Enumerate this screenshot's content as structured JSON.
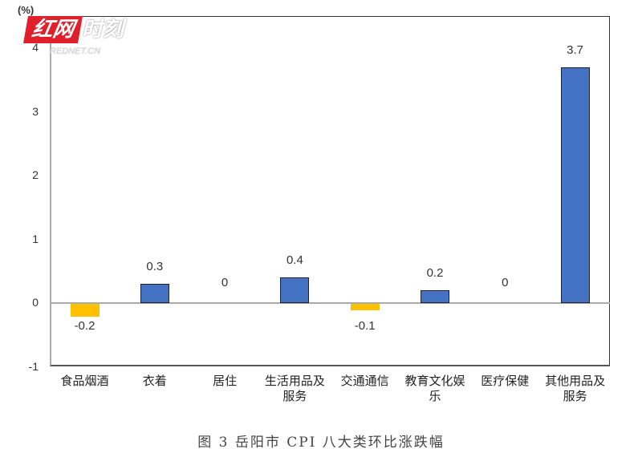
{
  "chart_data": {
    "type": "bar",
    "title": "图 3   岳阳市 CPI 八大类环比涨跌幅",
    "xlabel": "",
    "ylabel": "(%)",
    "ylim": [
      -1,
      4
    ],
    "yticks": [
      "4",
      "3",
      "2",
      "1",
      "0",
      "-1"
    ],
    "grid": false,
    "legend": null,
    "categories": [
      "食品烟酒",
      "衣着",
      "居住",
      "生活用品及服务",
      "交通通信",
      "教育文化娱乐",
      "医疗保健",
      "其他用品及服务"
    ],
    "category_lines": [
      [
        "食品烟酒"
      ],
      [
        "衣着"
      ],
      [
        "居住"
      ],
      [
        "生活用品及",
        "服务"
      ],
      [
        "交通通信"
      ],
      [
        "教育文化娱",
        "乐"
      ],
      [
        "医疗保健"
      ],
      [
        "其他用品及",
        "服务"
      ]
    ],
    "values": [
      -0.2,
      0.3,
      0,
      0.4,
      -0.1,
      0.2,
      0,
      3.7
    ],
    "value_labels": [
      "-0.2",
      "0.3",
      "0",
      "0.4",
      "-0.1",
      "0.2",
      "0",
      "3.7"
    ],
    "colors": {
      "positive": "#4472c4",
      "negative": "#ffc000"
    }
  },
  "watermark": {
    "red_text": "红网",
    "white_text": "时刻",
    "sub_text": "REDNET.CN"
  },
  "unit_label": "(%)",
  "caption": "图 3   岳阳市 CPI 八大类环比涨跌幅"
}
